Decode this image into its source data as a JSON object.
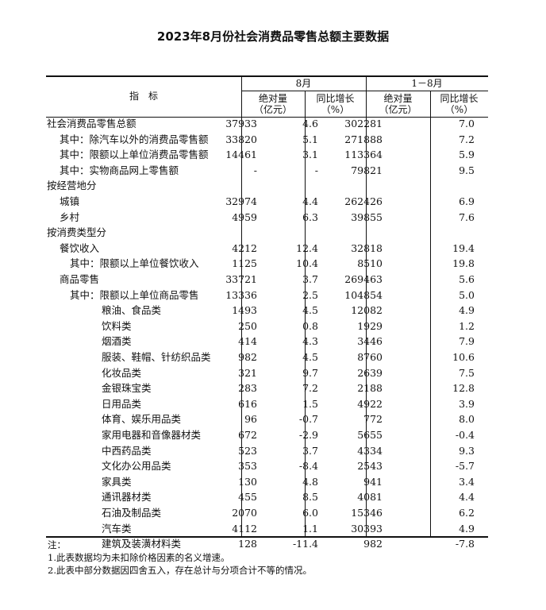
{
  "title": "2023年8月份社会消费品零售总额主要数据",
  "header": {
    "indicator": "指　标",
    "period1": "8月",
    "period2": "1－8月",
    "abs_label": "绝对量",
    "abs_unit": "（亿元）",
    "growth_label": "同比增长",
    "growth_unit": "（%）"
  },
  "rows": [
    {
      "label": "社会消费品零售总额",
      "level": 0,
      "m_abs": "37933",
      "m_g": "4.6",
      "c_abs": "302281",
      "c_g": "7.0"
    },
    {
      "label": "其中：除汽车以外的消费品零售额",
      "level": 1,
      "m_abs": "33820",
      "m_g": "5.1",
      "c_abs": "271888",
      "c_g": "7.2"
    },
    {
      "label": "其中：限额以上单位消费品零售额",
      "level": 1,
      "m_abs": "14461",
      "m_g": "3.1",
      "c_abs": "113364",
      "c_g": "5.9"
    },
    {
      "label": "其中：实物商品网上零售额",
      "level": 1,
      "m_abs": "-",
      "m_g": "-",
      "c_abs": "79821",
      "c_g": "9.5"
    },
    {
      "label": "按经营地分",
      "level": 0,
      "m_abs": "",
      "m_g": "",
      "c_abs": "",
      "c_g": ""
    },
    {
      "label": "城镇",
      "level": 1,
      "m_abs": "32974",
      "m_g": "4.4",
      "c_abs": "262426",
      "c_g": "6.9"
    },
    {
      "label": "乡村",
      "level": 1,
      "m_abs": "4959",
      "m_g": "6.3",
      "c_abs": "39855",
      "c_g": "7.6"
    },
    {
      "label": "按消费类型分",
      "level": 0,
      "m_abs": "",
      "m_g": "",
      "c_abs": "",
      "c_g": ""
    },
    {
      "label": "餐饮收入",
      "level": 1,
      "m_abs": "4212",
      "m_g": "12.4",
      "c_abs": "32818",
      "c_g": "19.4"
    },
    {
      "label": "其中：限额以上单位餐饮收入",
      "level": 2,
      "m_abs": "1125",
      "m_g": "10.4",
      "c_abs": "8510",
      "c_g": "19.8"
    },
    {
      "label": "商品零售",
      "level": 1,
      "m_abs": "33721",
      "m_g": "3.7",
      "c_abs": "269463",
      "c_g": "5.6"
    },
    {
      "label": "其中：限额以上单位商品零售",
      "level": 2,
      "m_abs": "13336",
      "m_g": "2.5",
      "c_abs": "104854",
      "c_g": "5.0"
    },
    {
      "label": "粮油、食品类",
      "level": 3,
      "m_abs": "1493",
      "m_g": "4.5",
      "c_abs": "12082",
      "c_g": "4.9"
    },
    {
      "label": "饮料类",
      "level": 3,
      "m_abs": "250",
      "m_g": "0.8",
      "c_abs": "1929",
      "c_g": "1.2"
    },
    {
      "label": "烟酒类",
      "level": 3,
      "m_abs": "414",
      "m_g": "4.3",
      "c_abs": "3446",
      "c_g": "7.9"
    },
    {
      "label": "服装、鞋帽、针纺织品类",
      "level": 3,
      "m_abs": "982",
      "m_g": "4.5",
      "c_abs": "8760",
      "c_g": "10.6"
    },
    {
      "label": "化妆品类",
      "level": 3,
      "m_abs": "321",
      "m_g": "9.7",
      "c_abs": "2639",
      "c_g": "7.5"
    },
    {
      "label": "金银珠宝类",
      "level": 3,
      "m_abs": "283",
      "m_g": "7.2",
      "c_abs": "2188",
      "c_g": "12.8"
    },
    {
      "label": "日用品类",
      "level": 3,
      "m_abs": "616",
      "m_g": "1.5",
      "c_abs": "4922",
      "c_g": "3.9"
    },
    {
      "label": "体育、娱乐用品类",
      "level": 3,
      "m_abs": "96",
      "m_g": "-0.7",
      "c_abs": "772",
      "c_g": "8.0"
    },
    {
      "label": "家用电器和音像器材类",
      "level": 3,
      "m_abs": "672",
      "m_g": "-2.9",
      "c_abs": "5655",
      "c_g": "-0.4"
    },
    {
      "label": "中西药品类",
      "level": 3,
      "m_abs": "523",
      "m_g": "3.7",
      "c_abs": "4334",
      "c_g": "9.3"
    },
    {
      "label": "文化办公用品类",
      "level": 3,
      "m_abs": "353",
      "m_g": "-8.4",
      "c_abs": "2543",
      "c_g": "-5.7"
    },
    {
      "label": "家具类",
      "level": 3,
      "m_abs": "130",
      "m_g": "4.8",
      "c_abs": "941",
      "c_g": "3.4"
    },
    {
      "label": "通讯器材类",
      "level": 3,
      "m_abs": "455",
      "m_g": "8.5",
      "c_abs": "4081",
      "c_g": "4.4"
    },
    {
      "label": "石油及制品类",
      "level": 3,
      "m_abs": "2070",
      "m_g": "6.0",
      "c_abs": "15346",
      "c_g": "6.2"
    },
    {
      "label": "汽车类",
      "level": 3,
      "m_abs": "4112",
      "m_g": "1.1",
      "c_abs": "30393",
      "c_g": "4.9"
    },
    {
      "label": "建筑及装潢材料类",
      "level": 3,
      "m_abs": "128",
      "m_g": "-11.4",
      "c_abs": "982",
      "c_g": "-7.8"
    }
  ],
  "notes": {
    "heading": "注：",
    "items": [
      "1.此表数据均为未扣除价格因素的名义增速。",
      "2.此表中部分数据因四舍五入，存在总计与分项合计不等的情况。"
    ]
  }
}
